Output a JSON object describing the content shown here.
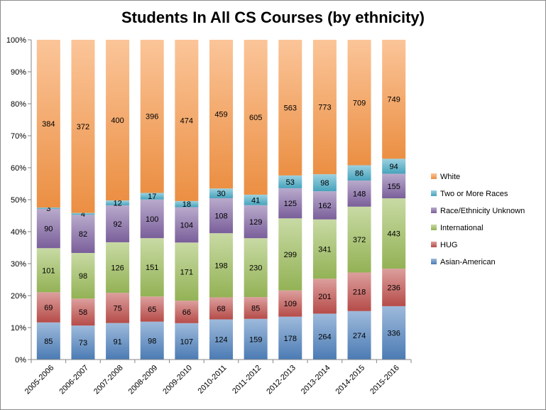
{
  "chart_data": {
    "type": "bar",
    "stacked": "percent",
    "title": "Students In All CS Courses (by ethnicity)",
    "categories": [
      "2005-2006",
      "2006-2007",
      "2007-2008",
      "2008-2009",
      "2009-2010",
      "2010-2011",
      "2011-2012",
      "2012-2013",
      "2013-2014",
      "2014-2015",
      "2015-2016"
    ],
    "series": [
      {
        "name": "Asian-American",
        "color": "#4f81bd",
        "values": [
          85,
          73,
          91,
          98,
          107,
          124,
          159,
          178,
          264,
          274,
          336
        ]
      },
      {
        "name": "HUG",
        "color": "#c0504d",
        "values": [
          69,
          58,
          75,
          65,
          66,
          68,
          85,
          109,
          201,
          218,
          236
        ]
      },
      {
        "name": "International",
        "color": "#9bbb59",
        "values": [
          101,
          98,
          126,
          151,
          171,
          198,
          230,
          299,
          341,
          372,
          443
        ]
      },
      {
        "name": "Race/Ethnicity Unknown",
        "color": "#8064a2",
        "values": [
          90,
          82,
          92,
          100,
          104,
          108,
          129,
          125,
          162,
          148,
          155
        ]
      },
      {
        "name": "Two or More Races",
        "color": "#4bacc6",
        "values": [
          3,
          4,
          12,
          17,
          18,
          30,
          41,
          53,
          98,
          86,
          94
        ]
      },
      {
        "name": "White",
        "color": "#f79646",
        "values": [
          384,
          372,
          400,
          396,
          474,
          459,
          605,
          563,
          773,
          709,
          749
        ]
      }
    ],
    "y_tick_labels": [
      "0%",
      "10%",
      "20%",
      "30%",
      "40%",
      "50%",
      "60%",
      "70%",
      "80%",
      "90%",
      "100%"
    ],
    "ylim": [
      0,
      100
    ],
    "grid": false,
    "legend_position": "right"
  }
}
